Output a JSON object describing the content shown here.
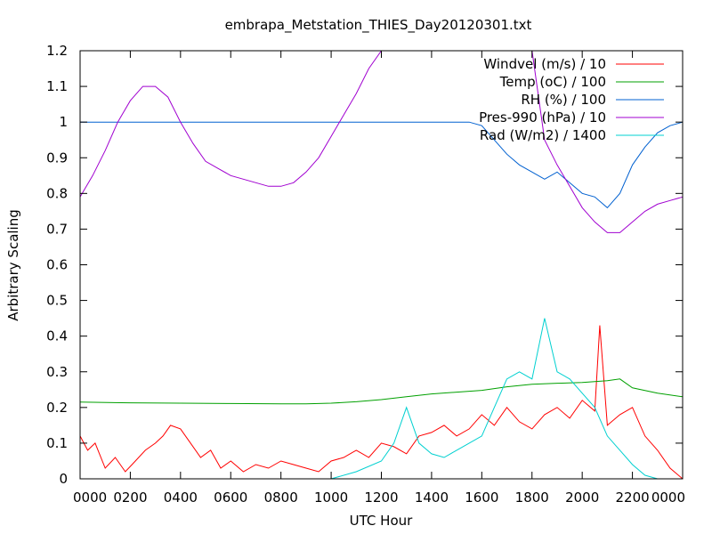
{
  "chart_data": {
    "type": "line",
    "title": "embrapa_Metstation_THIES_Day20120301.txt",
    "xlabel": "UTC Hour",
    "ylabel": "Arbitrary Scaling",
    "xlim": [
      0,
      24
    ],
    "ylim": [
      0,
      1.2
    ],
    "xticks": [
      0,
      2,
      4,
      6,
      8,
      10,
      12,
      14,
      16,
      18,
      20,
      22,
      24
    ],
    "xtick_labels": [
      "0000",
      "0200",
      "0400",
      "0600",
      "0800",
      "1000",
      "1200",
      "1400",
      "1600",
      "1800",
      "2000",
      "2200",
      "0000"
    ],
    "yticks": [
      0,
      0.1,
      0.2,
      0.3,
      0.4,
      0.5,
      0.6,
      0.7,
      0.8,
      0.9,
      1,
      1.1,
      1.2
    ],
    "ytick_labels": [
      "0",
      "0.1",
      "0.2",
      "0.3",
      "0.4",
      "0.5",
      "0.6",
      "0.7",
      "0.8",
      "0.9",
      "1",
      "1.1",
      "1.2"
    ],
    "legend_position": "top-right",
    "grid": false,
    "series": [
      {
        "name": "Windvel (m/s) / 10",
        "color": "#ff0000",
        "x": [
          0,
          0.3,
          0.6,
          1,
          1.4,
          1.8,
          2.2,
          2.6,
          3,
          3.3,
          3.6,
          4,
          4.4,
          4.8,
          5.2,
          5.6,
          6,
          6.5,
          7,
          7.5,
          8,
          8.5,
          9,
          9.5,
          10,
          10.5,
          11,
          11.5,
          12,
          12.5,
          13,
          13.5,
          14,
          14.5,
          15,
          15.5,
          16,
          16.5,
          17,
          17.5,
          18,
          18.5,
          19,
          19.5,
          20,
          20.5,
          20.7,
          21,
          21.5,
          22,
          22.5,
          23,
          23.5,
          24
        ],
        "y": [
          0.12,
          0.08,
          0.1,
          0.03,
          0.06,
          0.02,
          0.05,
          0.08,
          0.1,
          0.12,
          0.15,
          0.14,
          0.1,
          0.06,
          0.08,
          0.03,
          0.05,
          0.02,
          0.04,
          0.03,
          0.05,
          0.04,
          0.03,
          0.02,
          0.05,
          0.06,
          0.08,
          0.06,
          0.1,
          0.09,
          0.07,
          0.12,
          0.13,
          0.15,
          0.12,
          0.14,
          0.18,
          0.15,
          0.2,
          0.16,
          0.14,
          0.18,
          0.2,
          0.17,
          0.22,
          0.19,
          0.43,
          0.15,
          0.18,
          0.2,
          0.12,
          0.08,
          0.03,
          0
        ]
      },
      {
        "name": "Temp (oC) / 100",
        "color": "#00a000",
        "x": [
          0,
          2,
          4,
          6,
          8,
          9,
          10,
          11,
          12,
          13,
          14,
          15,
          16,
          17,
          18,
          19,
          20,
          21,
          21.5,
          22,
          23,
          24
        ],
        "y": [
          0.215,
          0.213,
          0.212,
          0.211,
          0.21,
          0.21,
          0.212,
          0.216,
          0.222,
          0.23,
          0.238,
          0.243,
          0.248,
          0.258,
          0.265,
          0.268,
          0.27,
          0.275,
          0.28,
          0.255,
          0.24,
          0.23
        ]
      },
      {
        "name": "RH (%) / 100",
        "color": "#0060d0",
        "x": [
          0,
          2,
          4,
          6,
          8,
          10,
          12,
          14,
          15.5,
          16,
          16.5,
          17,
          17.5,
          18,
          18.5,
          19,
          19.5,
          20,
          20.5,
          21,
          21.5,
          22,
          22.5,
          23,
          23.5,
          24
        ],
        "y": [
          1,
          1,
          1,
          1,
          1,
          1,
          1,
          1,
          1,
          0.99,
          0.95,
          0.91,
          0.88,
          0.86,
          0.84,
          0.86,
          0.83,
          0.8,
          0.79,
          0.76,
          0.8,
          0.88,
          0.93,
          0.97,
          0.99,
          1
        ]
      },
      {
        "name": "Pres-990 (hPa) / 10",
        "color": "#a000d0",
        "x": [
          0,
          0.5,
          1,
          1.5,
          2,
          2.5,
          3,
          3.5,
          4,
          4.5,
          5,
          5.5,
          6,
          6.5,
          7,
          7.5,
          8,
          8.5,
          9,
          9.5,
          10,
          10.5,
          11,
          11.5,
          12,
          12.5,
          13,
          14,
          15,
          16,
          17,
          18,
          18.5,
          19,
          19.5,
          20,
          20.5,
          21,
          21.5,
          22,
          22.5,
          23,
          23.5,
          24
        ],
        "y": [
          0.79,
          0.85,
          0.92,
          1.0,
          1.06,
          1.1,
          1.1,
          1.07,
          1.0,
          0.94,
          0.89,
          0.87,
          0.85,
          0.84,
          0.83,
          0.82,
          0.82,
          0.83,
          0.86,
          0.9,
          0.96,
          1.02,
          1.08,
          1.15,
          1.2,
          1.2,
          1.2,
          1.2,
          1.2,
          1.2,
          1.2,
          1.2,
          0.95,
          0.88,
          0.82,
          0.76,
          0.72,
          0.69,
          0.69,
          0.72,
          0.75,
          0.77,
          0.78,
          0.79
        ]
      },
      {
        "name": "Rad (W/m2) / 1400",
        "color": "#00d0d0",
        "x": [
          10,
          11,
          12,
          12.5,
          13,
          13.5,
          14,
          14.5,
          15,
          15.5,
          16,
          16.5,
          17,
          17.5,
          18,
          18.5,
          19,
          19.5,
          20,
          20.5,
          21,
          21.5,
          22,
          22.5,
          23
        ],
        "y": [
          0,
          0.02,
          0.05,
          0.1,
          0.2,
          0.1,
          0.07,
          0.06,
          0.08,
          0.1,
          0.12,
          0.2,
          0.28,
          0.3,
          0.28,
          0.45,
          0.3,
          0.28,
          0.24,
          0.2,
          0.12,
          0.08,
          0.04,
          0.01,
          0
        ]
      }
    ]
  }
}
